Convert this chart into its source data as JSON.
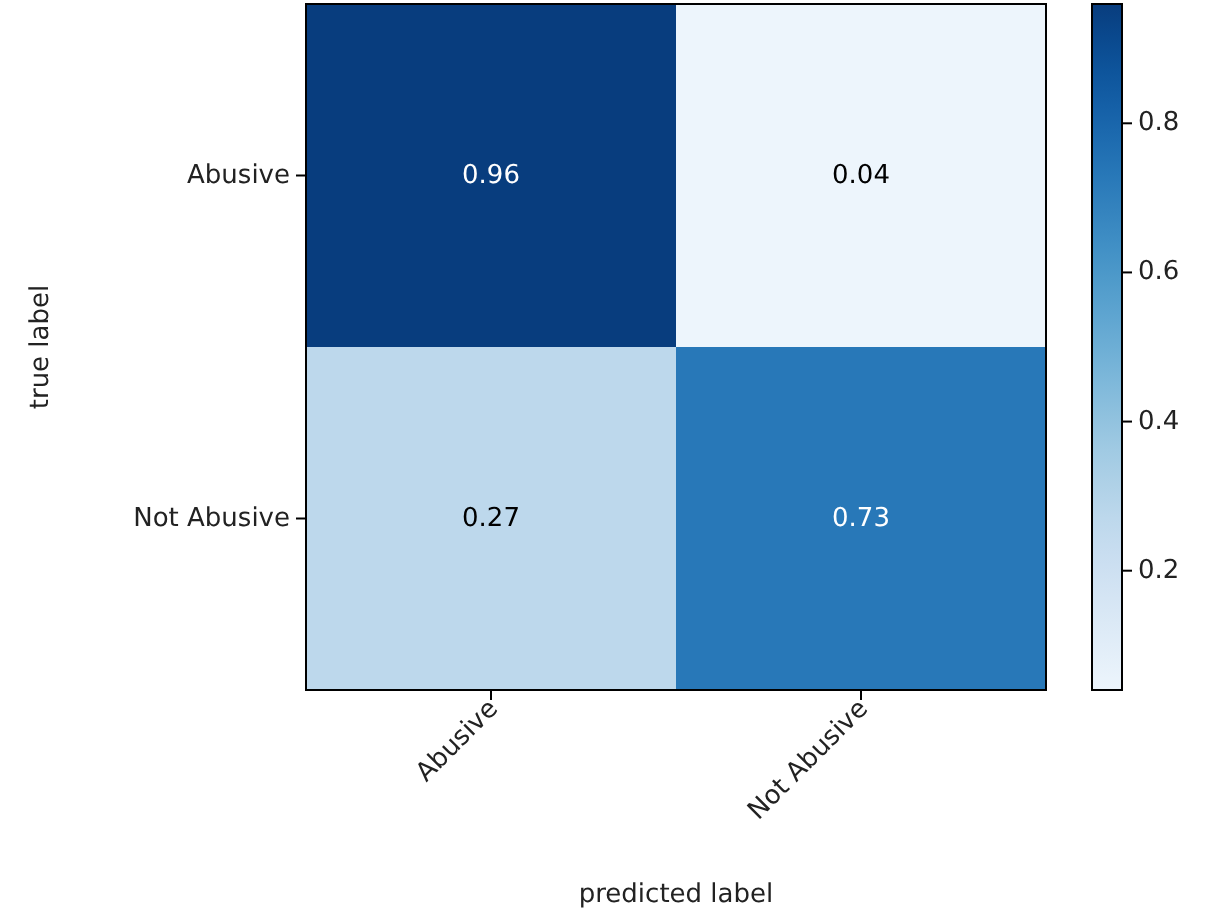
{
  "chart_data": {
    "type": "heatmap",
    "xlabel": "predicted label",
    "ylabel": "true label",
    "categories": [
      "Abusive",
      "Not Abusive"
    ],
    "y_categories": [
      "Abusive",
      "Not Abusive"
    ],
    "cells": [
      [
        0.96,
        0.04
      ],
      [
        0.27,
        0.73
      ]
    ],
    "data_labels": true,
    "clim": [
      0.04,
      0.96
    ],
    "cticks": [
      0.2,
      0.4,
      0.6,
      0.8
    ]
  }
}
